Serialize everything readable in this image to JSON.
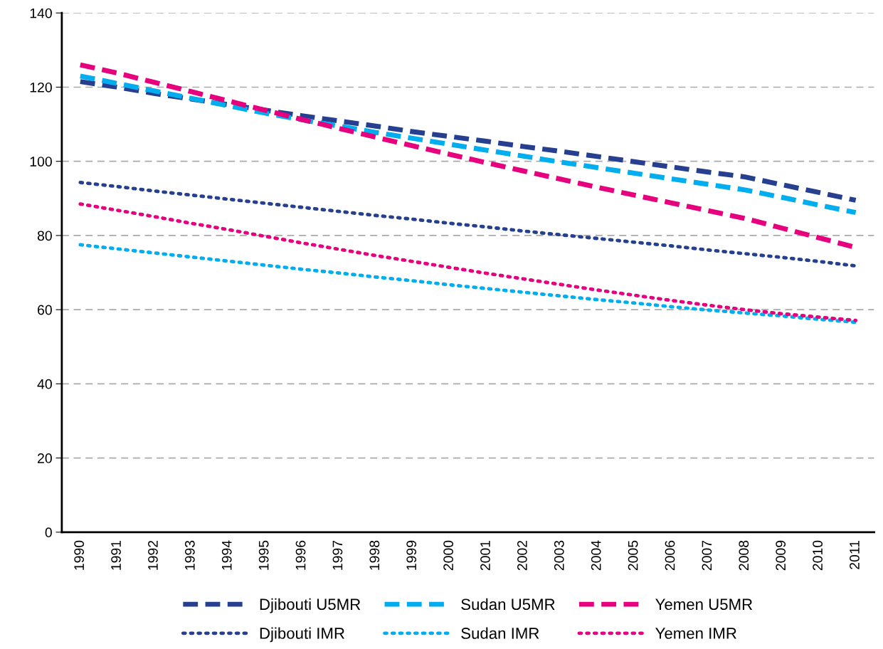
{
  "chart_data": {
    "type": "line",
    "categories": [
      "1990",
      "1991",
      "1992",
      "1993",
      "1994",
      "1995",
      "1996",
      "1997",
      "1998",
      "1999",
      "2000",
      "2001",
      "2002",
      "2003",
      "2004",
      "2005",
      "2006",
      "2007",
      "2008",
      "2009",
      "2010",
      "2011"
    ],
    "ylim": [
      0,
      140
    ],
    "yticks": [
      0,
      20,
      40,
      60,
      80,
      100,
      120,
      140
    ],
    "grid": "y",
    "legend": "bottom",
    "marker": "none",
    "series": [
      {
        "name": "Djibouti U5MR",
        "color": "#26408f",
        "line_style": "dashed",
        "values": [
          121.5,
          120,
          118.3,
          116.8,
          115.3,
          113.8,
          112.3,
          110.9,
          109.5,
          108,
          106.7,
          105.4,
          104,
          102.7,
          101.3,
          99.9,
          98.5,
          97.1,
          95.8,
          93.7,
          91.6,
          89.5
        ]
      },
      {
        "name": "Sudan U5MR",
        "color": "#00aeef",
        "line_style": "dashed",
        "values": [
          123,
          121,
          119,
          117,
          115,
          113,
          111.2,
          109.5,
          107.8,
          106.2,
          104.6,
          103,
          101.4,
          99.8,
          98.3,
          96.8,
          95.3,
          93.8,
          92.3,
          90.3,
          88.2,
          86.2
        ]
      },
      {
        "name": "Yemen U5MR",
        "color": "#e6007e",
        "line_style": "dashed",
        "values": [
          126,
          123.8,
          121.3,
          118.8,
          116.3,
          113.8,
          111.3,
          108.9,
          106.5,
          104.2,
          101.9,
          99.6,
          97.4,
          95.2,
          93,
          90.9,
          88.8,
          86.7,
          84.6,
          82,
          79.4,
          76.8
        ]
      },
      {
        "name": "Djibouti IMR",
        "color": "#26408f",
        "line_style": "dotted",
        "values": [
          94.3,
          93.2,
          92,
          90.9,
          89.8,
          88.7,
          87.6,
          86.5,
          85.4,
          84.4,
          83.3,
          82.3,
          81.2,
          80.2,
          79.2,
          78.2,
          77.2,
          76.1,
          75.1,
          74.1,
          73,
          71.8
        ]
      },
      {
        "name": "Sudan IMR",
        "color": "#00aeef",
        "line_style": "dotted",
        "values": [
          77.5,
          76.4,
          75.3,
          74.2,
          73.1,
          72,
          70.9,
          69.9,
          68.8,
          67.8,
          66.7,
          65.7,
          64.7,
          63.7,
          62.7,
          61.8,
          60.8,
          59.9,
          59.1,
          58.3,
          57.4,
          56.6
        ]
      },
      {
        "name": "Yemen IMR",
        "color": "#e6007e",
        "line_style": "dotted",
        "values": [
          88.5,
          86.8,
          85.1,
          83.3,
          81.6,
          79.8,
          78,
          76.3,
          74.6,
          73,
          71.4,
          69.8,
          68.3,
          66.8,
          65.3,
          63.9,
          62.5,
          61.2,
          60,
          58.9,
          58,
          57.1
        ]
      }
    ]
  }
}
